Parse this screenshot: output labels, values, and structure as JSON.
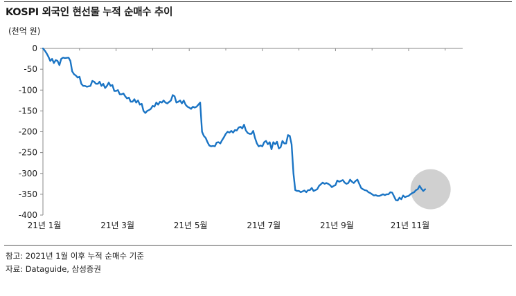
{
  "title": "KOSPI 외국인 현선물 누적 순매수 추이",
  "unit_label": "(천억 원)",
  "footnote": "참고: 2021년 1월 이후 누적 순매수 기준",
  "source": "자료: Dataguide, 삼성증권",
  "colors": {
    "line": "#1a74c4",
    "highlight": "#c8c8c8",
    "axis": "#888888"
  },
  "chart_data": {
    "type": "line",
    "title": "KOSPI 외국인 현선물 누적 순매수 추이",
    "ylabel": "(천억 원)",
    "xlabel": "",
    "ylim": [
      -400,
      0
    ],
    "xlim": [
      0,
      11.4
    ],
    "y_ticks": [
      0,
      -50,
      -100,
      -150,
      -200,
      -250,
      -300,
      -350,
      -400
    ],
    "y_tick_labels": [
      "0",
      "-50",
      "-100",
      "-150",
      "-200",
      "-250",
      "-300",
      "-350",
      "-400"
    ],
    "x_tick_positions": [
      0,
      2,
      4,
      6,
      8,
      10
    ],
    "x_tick_labels": [
      "21년 1월",
      "21년 3월",
      "21년 5월",
      "21년 7월",
      "21년 9월",
      "21년 11월"
    ],
    "highlight": {
      "x": 10.6,
      "y": -338,
      "note": "latest period highlighted with gray circle"
    },
    "series": [
      {
        "color": "#1a74c4",
        "points": [
          [
            0.0,
            0
          ],
          [
            0.05,
            -5
          ],
          [
            0.1,
            -12
          ],
          [
            0.15,
            -20
          ],
          [
            0.2,
            -30
          ],
          [
            0.25,
            -25
          ],
          [
            0.3,
            -35
          ],
          [
            0.35,
            -28
          ],
          [
            0.4,
            -30
          ],
          [
            0.45,
            -40
          ],
          [
            0.5,
            -25
          ],
          [
            0.55,
            -22
          ],
          [
            0.6,
            -23
          ],
          [
            0.7,
            -22
          ],
          [
            0.75,
            -30
          ],
          [
            0.8,
            -55
          ],
          [
            0.85,
            -62
          ],
          [
            0.9,
            -65
          ],
          [
            0.95,
            -70
          ],
          [
            1.0,
            -68
          ],
          [
            1.05,
            -85
          ],
          [
            1.1,
            -90
          ],
          [
            1.15,
            -90
          ],
          [
            1.2,
            -92
          ],
          [
            1.3,
            -90
          ],
          [
            1.35,
            -78
          ],
          [
            1.4,
            -80
          ],
          [
            1.45,
            -85
          ],
          [
            1.5,
            -85
          ],
          [
            1.55,
            -80
          ],
          [
            1.6,
            -90
          ],
          [
            1.65,
            -85
          ],
          [
            1.7,
            -95
          ],
          [
            1.75,
            -90
          ],
          [
            1.8,
            -82
          ],
          [
            1.85,
            -90
          ],
          [
            1.9,
            -88
          ],
          [
            1.95,
            -102
          ],
          [
            2.0,
            -102
          ],
          [
            2.05,
            -100
          ],
          [
            2.1,
            -110
          ],
          [
            2.15,
            -110
          ],
          [
            2.2,
            -108
          ],
          [
            2.25,
            -115
          ],
          [
            2.3,
            -120
          ],
          [
            2.35,
            -118
          ],
          [
            2.4,
            -128
          ],
          [
            2.45,
            -128
          ],
          [
            2.5,
            -122
          ],
          [
            2.55,
            -130
          ],
          [
            2.6,
            -125
          ],
          [
            2.65,
            -135
          ],
          [
            2.7,
            -133
          ],
          [
            2.75,
            -150
          ],
          [
            2.8,
            -155
          ],
          [
            2.85,
            -150
          ],
          [
            2.9,
            -148
          ],
          [
            2.95,
            -145
          ],
          [
            3.0,
            -138
          ],
          [
            3.05,
            -140
          ],
          [
            3.1,
            -130
          ],
          [
            3.15,
            -135
          ],
          [
            3.2,
            -128
          ],
          [
            3.25,
            -130
          ],
          [
            3.3,
            -125
          ],
          [
            3.35,
            -130
          ],
          [
            3.4,
            -132
          ],
          [
            3.5,
            -125
          ],
          [
            3.55,
            -112
          ],
          [
            3.6,
            -115
          ],
          [
            3.65,
            -130
          ],
          [
            3.7,
            -128
          ],
          [
            3.75,
            -125
          ],
          [
            3.8,
            -132
          ],
          [
            3.85,
            -125
          ],
          [
            3.9,
            -135
          ],
          [
            3.95,
            -140
          ],
          [
            4.0,
            -142
          ],
          [
            4.05,
            -145
          ],
          [
            4.1,
            -140
          ],
          [
            4.15,
            -142
          ],
          [
            4.2,
            -140
          ],
          [
            4.25,
            -135
          ],
          [
            4.3,
            -130
          ],
          [
            4.35,
            -200
          ],
          [
            4.4,
            -210
          ],
          [
            4.45,
            -215
          ],
          [
            4.5,
            -225
          ],
          [
            4.55,
            -233
          ],
          [
            4.6,
            -235
          ],
          [
            4.65,
            -234
          ],
          [
            4.7,
            -235
          ],
          [
            4.75,
            -226
          ],
          [
            4.8,
            -225
          ],
          [
            4.85,
            -228
          ],
          [
            4.9,
            -220
          ],
          [
            4.95,
            -213
          ],
          [
            5.0,
            -205
          ],
          [
            5.05,
            -200
          ],
          [
            5.1,
            -202
          ],
          [
            5.15,
            -198
          ],
          [
            5.2,
            -202
          ],
          [
            5.25,
            -196
          ],
          [
            5.3,
            -197
          ],
          [
            5.35,
            -190
          ],
          [
            5.4,
            -188
          ],
          [
            5.45,
            -192
          ],
          [
            5.5,
            -183
          ],
          [
            5.55,
            -197
          ],
          [
            5.6,
            -203
          ],
          [
            5.65,
            -205
          ],
          [
            5.7,
            -205
          ],
          [
            5.75,
            -198
          ],
          [
            5.8,
            -215
          ],
          [
            5.85,
            -228
          ],
          [
            5.9,
            -235
          ],
          [
            5.95,
            -233
          ],
          [
            6.0,
            -235
          ],
          [
            6.05,
            -225
          ],
          [
            6.1,
            -222
          ],
          [
            6.15,
            -230
          ],
          [
            6.2,
            -225
          ],
          [
            6.25,
            -242
          ],
          [
            6.3,
            -225
          ],
          [
            6.35,
            -230
          ],
          [
            6.4,
            -224
          ],
          [
            6.45,
            -240
          ],
          [
            6.5,
            -237
          ],
          [
            6.55,
            -222
          ],
          [
            6.6,
            -228
          ],
          [
            6.65,
            -228
          ],
          [
            6.7,
            -208
          ],
          [
            6.75,
            -210
          ],
          [
            6.8,
            -230
          ],
          [
            6.85,
            -300
          ],
          [
            6.9,
            -340
          ],
          [
            6.95,
            -342
          ],
          [
            7.0,
            -342
          ],
          [
            7.05,
            -345
          ],
          [
            7.1,
            -343
          ],
          [
            7.15,
            -341
          ],
          [
            7.2,
            -345
          ],
          [
            7.25,
            -340
          ],
          [
            7.3,
            -340
          ],
          [
            7.35,
            -335
          ],
          [
            7.4,
            -342
          ],
          [
            7.45,
            -340
          ],
          [
            7.5,
            -338
          ],
          [
            7.55,
            -330
          ],
          [
            7.6,
            -326
          ],
          [
            7.65,
            -322
          ],
          [
            7.7,
            -325
          ],
          [
            7.75,
            -323
          ],
          [
            7.8,
            -325
          ],
          [
            7.85,
            -328
          ],
          [
            7.9,
            -333
          ],
          [
            7.95,
            -330
          ],
          [
            8.0,
            -328
          ],
          [
            8.05,
            -317
          ],
          [
            8.1,
            -320
          ],
          [
            8.15,
            -318
          ],
          [
            8.2,
            -316
          ],
          [
            8.25,
            -322
          ],
          [
            8.3,
            -325
          ],
          [
            8.35,
            -323
          ],
          [
            8.4,
            -315
          ],
          [
            8.45,
            -320
          ],
          [
            8.5,
            -323
          ],
          [
            8.55,
            -318
          ],
          [
            8.6,
            -315
          ],
          [
            8.65,
            -325
          ],
          [
            8.7,
            -335
          ],
          [
            8.75,
            -338
          ],
          [
            8.8,
            -340
          ],
          [
            8.85,
            -341
          ],
          [
            8.9,
            -345
          ],
          [
            8.95,
            -347
          ],
          [
            9.0,
            -350
          ],
          [
            9.05,
            -353
          ],
          [
            9.1,
            -352
          ],
          [
            9.15,
            -354
          ],
          [
            9.2,
            -354
          ],
          [
            9.25,
            -352
          ],
          [
            9.3,
            -350
          ],
          [
            9.35,
            -352
          ],
          [
            9.4,
            -350
          ],
          [
            9.45,
            -350
          ],
          [
            9.5,
            -345
          ],
          [
            9.55,
            -346
          ],
          [
            9.6,
            -355
          ],
          [
            9.65,
            -364
          ],
          [
            9.7,
            -365
          ],
          [
            9.75,
            -358
          ],
          [
            9.8,
            -362
          ],
          [
            9.85,
            -353
          ],
          [
            9.9,
            -357
          ],
          [
            9.95,
            -355
          ],
          [
            10.0,
            -354
          ],
          [
            10.05,
            -350
          ],
          [
            10.1,
            -347
          ],
          [
            10.15,
            -345
          ],
          [
            10.2,
            -340
          ],
          [
            10.25,
            -338
          ],
          [
            10.3,
            -330
          ],
          [
            10.35,
            -337
          ],
          [
            10.4,
            -342
          ],
          [
            10.45,
            -338
          ]
        ]
      }
    ]
  }
}
